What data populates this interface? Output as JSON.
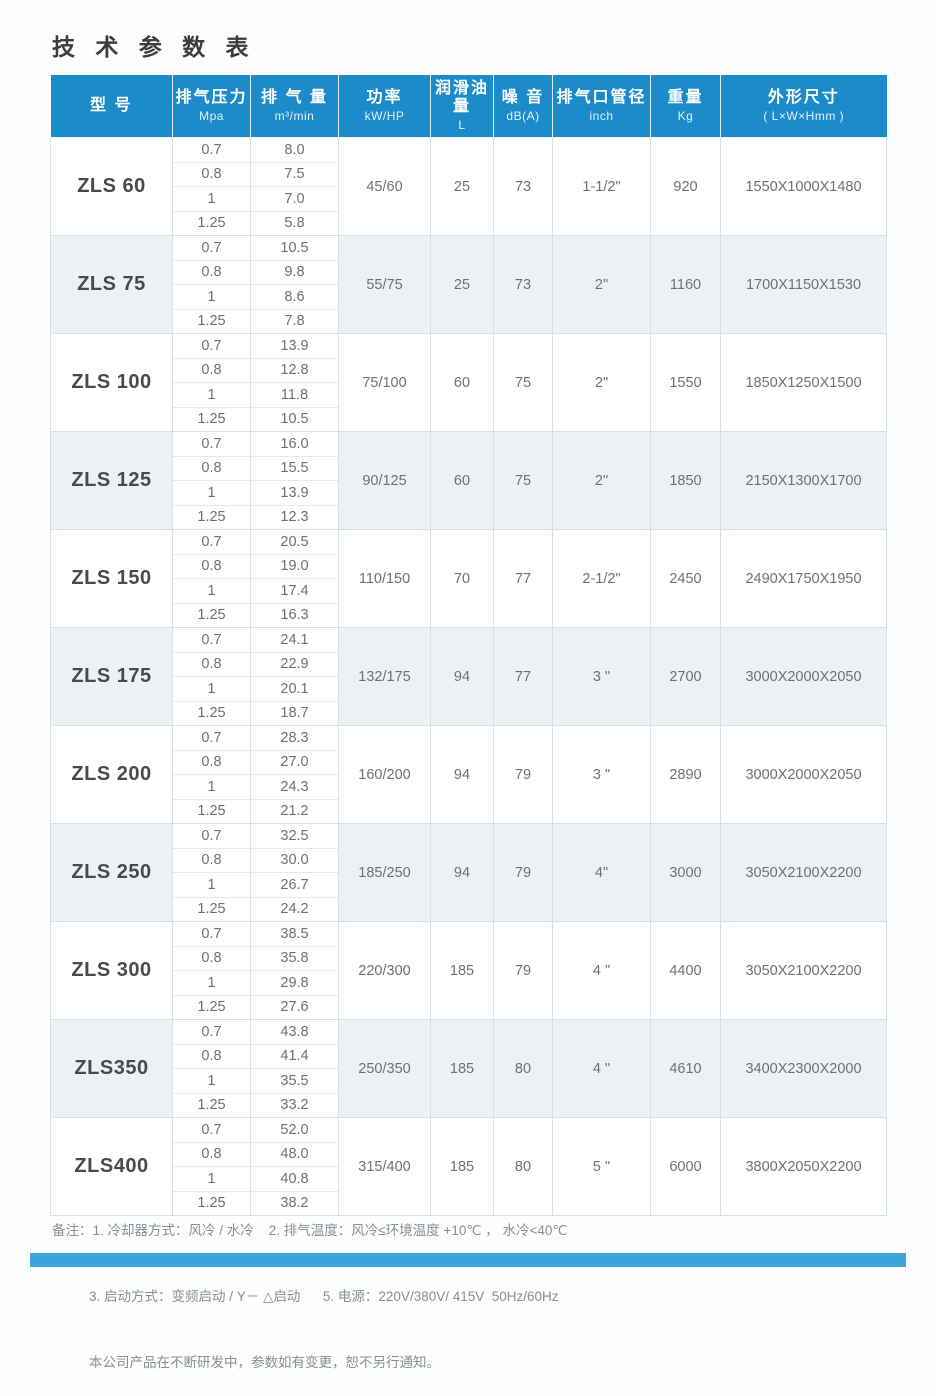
{
  "page": {
    "title": "技 术 参 数 表"
  },
  "colors": {
    "header_blue": "#1b8bc9",
    "shaded_row": "#edf1f3",
    "footer_bar_blue": "#3aa5da"
  },
  "table": {
    "columns": [
      {
        "key": "model",
        "label": "型 号",
        "unit": ""
      },
      {
        "key": "pressure",
        "label": "排气压力",
        "unit": "Mpa"
      },
      {
        "key": "volume",
        "label": "排 气 量",
        "unit": "m³/min"
      },
      {
        "key": "power",
        "label": "功率",
        "unit": "kW/HP"
      },
      {
        "key": "oil",
        "label": "润滑油量",
        "unit": "L"
      },
      {
        "key": "noise",
        "label": "噪 音",
        "unit": "dB(A)"
      },
      {
        "key": "port",
        "label": "排气口管径",
        "unit": "inch"
      },
      {
        "key": "weight",
        "label": "重量",
        "unit": "Kg"
      },
      {
        "key": "dims",
        "label": "外形尺寸",
        "unit": "( L×W×Hmm )"
      }
    ],
    "models": [
      {
        "name": "ZLS 60",
        "shaded": false,
        "pressures": [
          "0.7",
          "0.8",
          "1",
          "1.25"
        ],
        "volumes": [
          "8.0",
          "7.5",
          "7.0",
          "5.8"
        ],
        "power": "45/60",
        "oil": "25",
        "noise": "73",
        "port": "1-1/2\"",
        "weight": "920",
        "dims": "1550X1000X1480"
      },
      {
        "name": "ZLS 75",
        "shaded": true,
        "pressures": [
          "0.7",
          "0.8",
          "1",
          "1.25"
        ],
        "volumes": [
          "10.5",
          "9.8",
          "8.6",
          "7.8"
        ],
        "power": "55/75",
        "oil": "25",
        "noise": "73",
        "port": "2\"",
        "weight": "1160",
        "dims": "1700X1150X1530"
      },
      {
        "name": "ZLS 100",
        "shaded": false,
        "pressures": [
          "0.7",
          "0.8",
          "1",
          "1.25"
        ],
        "volumes": [
          "13.9",
          "12.8",
          "11.8",
          "10.5"
        ],
        "power": "75/100",
        "oil": "60",
        "noise": "75",
        "port": "2\"",
        "weight": "1550",
        "dims": "1850X1250X1500"
      },
      {
        "name": "ZLS 125",
        "shaded": true,
        "pressures": [
          "0.7",
          "0.8",
          "1",
          "1.25"
        ],
        "volumes": [
          "16.0",
          "15.5",
          "13.9",
          "12.3"
        ],
        "power": "90/125",
        "oil": "60",
        "noise": "75",
        "port": "2\"",
        "weight": "1850",
        "dims": "2150X1300X1700"
      },
      {
        "name": "ZLS 150",
        "shaded": false,
        "pressures": [
          "0.7",
          "0.8",
          "1",
          "1.25"
        ],
        "volumes": [
          "20.5",
          "19.0",
          "17.4",
          "16.3"
        ],
        "power": "110/150",
        "oil": "70",
        "noise": "77",
        "port": "2-1/2\"",
        "weight": "2450",
        "dims": "2490X1750X1950"
      },
      {
        "name": "ZLS 175",
        "shaded": true,
        "pressures": [
          "0.7",
          "0.8",
          "1",
          "1.25"
        ],
        "volumes": [
          "24.1",
          "22.9",
          "20.1",
          "18.7"
        ],
        "power": "132/175",
        "oil": "94",
        "noise": "77",
        "port": "3 \"",
        "weight": "2700",
        "dims": "3000X2000X2050"
      },
      {
        "name": "ZLS 200",
        "shaded": false,
        "pressures": [
          "0.7",
          "0.8",
          "1",
          "1.25"
        ],
        "volumes": [
          "28.3",
          "27.0",
          "24.3",
          "21.2"
        ],
        "power": "160/200",
        "oil": "94",
        "noise": "79",
        "port": "3 \"",
        "weight": "2890",
        "dims": "3000X2000X2050"
      },
      {
        "name": "ZLS 250",
        "shaded": true,
        "pressures": [
          "0.7",
          "0.8",
          "1",
          "1.25"
        ],
        "volumes": [
          "32.5",
          "30.0",
          "26.7",
          "24.2"
        ],
        "power": "185/250",
        "oil": "94",
        "noise": "79",
        "port": "4\"",
        "weight": "3000",
        "dims": "3050X2100X2200"
      },
      {
        "name": "ZLS 300",
        "shaded": false,
        "pressures": [
          "0.7",
          "0.8",
          "1",
          "1.25"
        ],
        "volumes": [
          "38.5",
          "35.8",
          "29.8",
          "27.6"
        ],
        "power": "220/300",
        "oil": "185",
        "noise": "79",
        "port": "4 \"",
        "weight": "4400",
        "dims": "3050X2100X2200"
      },
      {
        "name": "ZLS350",
        "shaded": true,
        "pressures": [
          "0.7",
          "0.8",
          "1",
          "1.25"
        ],
        "volumes": [
          "43.8",
          "41.4",
          "35.5",
          "33.2"
        ],
        "power": "250/350",
        "oil": "185",
        "noise": "80",
        "port": "4 \"",
        "weight": "4610",
        "dims": "3400X2300X2000"
      },
      {
        "name": "ZLS400",
        "shaded": false,
        "pressures": [
          "0.7",
          "0.8",
          "1",
          "1.25"
        ],
        "volumes": [
          "52.0",
          "48.0",
          "40.8",
          "38.2"
        ],
        "power": "315/400",
        "oil": "185",
        "noise": "80",
        "port": "5 \"",
        "weight": "6000",
        "dims": "3800X2050X2200"
      }
    ]
  },
  "notes": {
    "line1": "备注：1. 冷却器方式：风冷 / 水冷    2. 排气温度：风冷≤环境温度 +10℃ ， 水冷<40℃",
    "line2": "3. 启动方式：变频启动 / Y－ △启动      5. 电源：220V/380V/ 415V  50Hz/60Hz",
    "line3": "本公司产品在不断研发中，参数如有变更，恕不另行通知。"
  }
}
